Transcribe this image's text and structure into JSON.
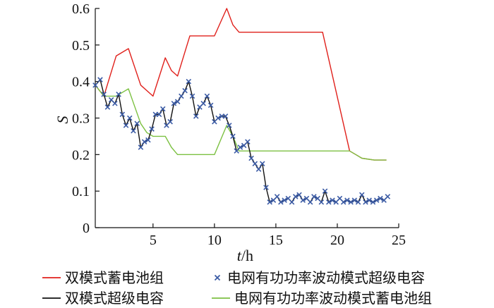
{
  "chart_data": {
    "type": "line",
    "xlabel_italic": "t",
    "xlabel_unit": "/h",
    "ylabel": "S",
    "xlim": [
      0.3,
      25
    ],
    "ylim": [
      0,
      0.6
    ],
    "xticks": [
      "5",
      "10",
      "15",
      "20",
      "25"
    ],
    "yticks": [
      "0",
      "0.1",
      "0.2",
      "0.3",
      "0.4",
      "0.5",
      "0.6"
    ],
    "series": [
      {
        "name": "双模式蓄电池组",
        "color": "#e0201b",
        "style": "line",
        "x": [
          0.3,
          1,
          2,
          3,
          4,
          5,
          6,
          6.5,
          7,
          8,
          9,
          10,
          11,
          11.5,
          12,
          13,
          14,
          15,
          18.8,
          21,
          21.5,
          22,
          23,
          24
        ],
        "y": [
          0.39,
          0.36,
          0.47,
          0.49,
          0.39,
          0.36,
          0.465,
          0.43,
          0.415,
          0.525,
          0.525,
          0.525,
          0.6,
          0.555,
          0.535,
          0.535,
          0.535,
          0.535,
          0.535,
          0.21,
          0.2,
          0.19,
          0.185,
          0.185
        ]
      },
      {
        "name": "双模式超级电容",
        "color": "#111111",
        "style": "line",
        "x": [
          0.3,
          0.7,
          1.0,
          1.3,
          1.6,
          1.9,
          2.2,
          2.5,
          2.8,
          3.1,
          3.4,
          3.7,
          4.0,
          4.3,
          4.6,
          4.9,
          5.2,
          5.5,
          5.8,
          6.1,
          6.4,
          6.7,
          7.0,
          7.3,
          7.6,
          7.9,
          8.2,
          8.5,
          8.8,
          9.1,
          9.4,
          9.7,
          10.0,
          10.3,
          10.6,
          10.9,
          11.2,
          11.5,
          11.8,
          12.1,
          12.4,
          12.7,
          13.0,
          13.3,
          13.6,
          13.9,
          14.2,
          14.5,
          14.8,
          15.1,
          15.4,
          15.7,
          16.0,
          16.3,
          16.6,
          16.9,
          17.2,
          17.5,
          17.8,
          18.1,
          18.4,
          18.7,
          19.0,
          19.3,
          19.6,
          19.9,
          20.2,
          20.5,
          20.8,
          21.1,
          21.4,
          21.7,
          22.0,
          22.3,
          22.6,
          22.9,
          23.2,
          23.5,
          23.8,
          24.1
        ],
        "y": [
          0.39,
          0.405,
          0.365,
          0.33,
          0.35,
          0.34,
          0.365,
          0.31,
          0.28,
          0.3,
          0.265,
          0.285,
          0.22,
          0.235,
          0.24,
          0.27,
          0.31,
          0.31,
          0.325,
          0.28,
          0.29,
          0.34,
          0.345,
          0.36,
          0.375,
          0.4,
          0.36,
          0.305,
          0.33,
          0.34,
          0.36,
          0.335,
          0.29,
          0.3,
          0.305,
          0.305,
          0.28,
          0.25,
          0.21,
          0.22,
          0.225,
          0.235,
          0.19,
          0.175,
          0.16,
          0.175,
          0.11,
          0.07,
          0.075,
          0.085,
          0.07,
          0.075,
          0.08,
          0.07,
          0.085,
          0.09,
          0.075,
          0.08,
          0.07,
          0.085,
          0.08,
          0.07,
          0.1,
          0.07,
          0.075,
          0.07,
          0.08,
          0.07,
          0.075,
          0.07,
          0.075,
          0.07,
          0.09,
          0.07,
          0.075,
          0.07,
          0.075,
          0.08,
          0.075,
          0.085
        ]
      },
      {
        "name": "电网有功功率波动模式超级电容",
        "color": "#3b5ba5",
        "style": "marker-x",
        "x": [
          0.3,
          0.7,
          1.0,
          1.3,
          1.6,
          1.9,
          2.2,
          2.5,
          2.8,
          3.1,
          3.4,
          3.7,
          4.0,
          4.3,
          4.6,
          4.9,
          5.2,
          5.5,
          5.8,
          6.1,
          6.4,
          6.7,
          7.0,
          7.3,
          7.6,
          7.9,
          8.2,
          8.5,
          8.8,
          9.1,
          9.4,
          9.7,
          10.0,
          10.3,
          10.6,
          10.9,
          11.2,
          11.5,
          11.8,
          12.1,
          12.4,
          12.7,
          13.0,
          13.3,
          13.6,
          13.9,
          14.2,
          14.5,
          14.8,
          15.1,
          15.4,
          15.7,
          16.0,
          16.3,
          16.6,
          16.9,
          17.2,
          17.5,
          17.8,
          18.1,
          18.4,
          18.7,
          19.0,
          19.3,
          19.6,
          19.9,
          20.2,
          20.5,
          20.8,
          21.1,
          21.4,
          21.7,
          22.0,
          22.3,
          22.6,
          22.9,
          23.2,
          23.5,
          23.8,
          24.1
        ],
        "y": [
          0.39,
          0.405,
          0.365,
          0.33,
          0.35,
          0.34,
          0.365,
          0.31,
          0.28,
          0.3,
          0.265,
          0.285,
          0.22,
          0.235,
          0.24,
          0.27,
          0.31,
          0.31,
          0.325,
          0.28,
          0.29,
          0.34,
          0.345,
          0.36,
          0.375,
          0.4,
          0.36,
          0.305,
          0.33,
          0.34,
          0.36,
          0.335,
          0.29,
          0.3,
          0.305,
          0.305,
          0.28,
          0.25,
          0.21,
          0.22,
          0.225,
          0.235,
          0.19,
          0.175,
          0.16,
          0.175,
          0.11,
          0.07,
          0.075,
          0.085,
          0.07,
          0.075,
          0.08,
          0.07,
          0.085,
          0.09,
          0.075,
          0.08,
          0.07,
          0.085,
          0.08,
          0.07,
          0.1,
          0.07,
          0.075,
          0.07,
          0.08,
          0.07,
          0.075,
          0.07,
          0.075,
          0.07,
          0.09,
          0.07,
          0.075,
          0.07,
          0.075,
          0.08,
          0.075,
          0.085
        ]
      },
      {
        "name": "电网有功功率波动模式蓄电池组",
        "color": "#7dc143",
        "style": "line",
        "x": [
          0.3,
          1,
          2,
          3,
          4,
          4.5,
          5,
          5.5,
          6,
          6.5,
          7,
          8,
          9,
          10,
          11,
          11.5,
          12,
          13,
          14,
          15,
          18,
          21,
          21.5,
          22,
          23,
          24
        ],
        "y": [
          0.39,
          0.36,
          0.36,
          0.38,
          0.285,
          0.26,
          0.25,
          0.25,
          0.25,
          0.22,
          0.2,
          0.2,
          0.2,
          0.2,
          0.28,
          0.25,
          0.21,
          0.21,
          0.21,
          0.21,
          0.21,
          0.21,
          0.2,
          0.19,
          0.185,
          0.185
        ]
      }
    ],
    "legend": [
      {
        "label": "双模式蓄电池组",
        "color": "#e0201b",
        "style": "line"
      },
      {
        "label": "电网有功功率波动模式超级电容",
        "color": "#3b5ba5",
        "style": "marker-x"
      },
      {
        "label": "双模式超级电容",
        "color": "#111111",
        "style": "line"
      },
      {
        "label": "电网有功功率波动模式蓄电池组",
        "color": "#7dc143",
        "style": "line"
      }
    ],
    "legend_position": "bottom",
    "grid": false
  }
}
